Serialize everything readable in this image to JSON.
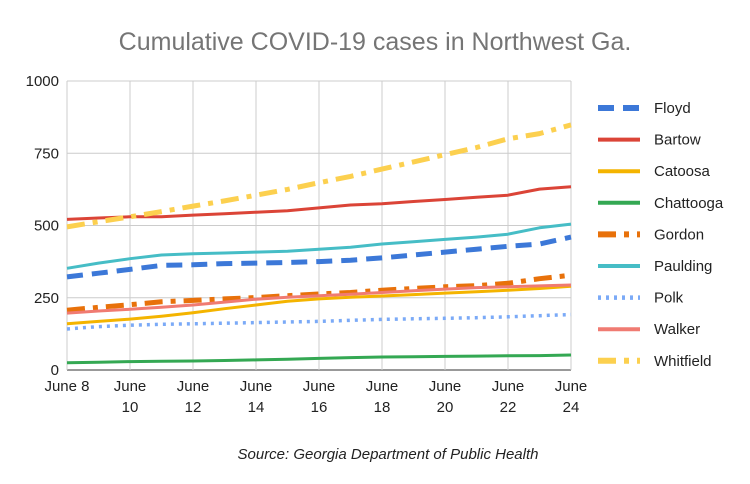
{
  "chart_data": {
    "type": "line",
    "title": "Cumulative COVID-19 cases in Northwest Ga.",
    "source": "Source: Georgia Department of Public Health",
    "xlabel": "",
    "ylabel": "",
    "ylim": [
      0,
      1000
    ],
    "yticks": [
      0,
      250,
      500,
      750,
      1000
    ],
    "x": [
      8,
      9,
      10,
      11,
      12,
      13,
      14,
      15,
      16,
      17,
      18,
      19,
      20,
      21,
      22,
      23,
      24
    ],
    "xticks": [
      {
        "x": 8,
        "line1": "June 8",
        "line2": ""
      },
      {
        "x": 10,
        "line1": "June",
        "line2": "10"
      },
      {
        "x": 12,
        "line1": "June",
        "line2": "12"
      },
      {
        "x": 14,
        "line1": "June",
        "line2": "14"
      },
      {
        "x": 16,
        "line1": "June",
        "line2": "16"
      },
      {
        "x": 18,
        "line1": "June",
        "line2": "18"
      },
      {
        "x": 20,
        "line1": "June",
        "line2": "20"
      },
      {
        "x": 22,
        "line1": "June",
        "line2": "22"
      },
      {
        "x": 24,
        "line1": "June",
        "line2": "24"
      }
    ],
    "grid": true,
    "legend_position": "right",
    "series": [
      {
        "name": "Floyd",
        "color": "#3c78d8",
        "dash": "long-dash",
        "values": [
          322,
          335,
          348,
          362,
          364,
          368,
          370,
          372,
          375,
          380,
          388,
          398,
          408,
          418,
          428,
          436,
          460
        ]
      },
      {
        "name": "Bartow",
        "color": "#db4437",
        "dash": "solid",
        "values": [
          521,
          526,
          530,
          530,
          536,
          541,
          546,
          551,
          561,
          571,
          575,
          583,
          590,
          598,
          605,
          626,
          634
        ]
      },
      {
        "name": "Catoosa",
        "color": "#f4b400",
        "dash": "solid",
        "values": [
          160,
          168,
          176,
          186,
          198,
          212,
          225,
          238,
          246,
          252,
          256,
          261,
          266,
          271,
          276,
          282,
          290
        ]
      },
      {
        "name": "Chattooga",
        "color": "#34a853",
        "dash": "solid",
        "values": [
          25,
          27,
          29,
          30,
          31,
          33,
          35,
          37,
          40,
          43,
          45,
          46,
          47,
          48,
          49,
          50,
          52
        ]
      },
      {
        "name": "Gordon",
        "color": "#e8710a",
        "dash": "dash-dot",
        "values": [
          207,
          217,
          226,
          236,
          241,
          246,
          251,
          257,
          263,
          268,
          276,
          282,
          288,
          292,
          300,
          316,
          328
        ]
      },
      {
        "name": "Paulding",
        "color": "#46bdc6",
        "dash": "solid",
        "values": [
          352,
          370,
          385,
          398,
          402,
          405,
          408,
          411,
          418,
          425,
          436,
          444,
          452,
          460,
          470,
          492,
          505
        ]
      },
      {
        "name": "Polk",
        "color": "#7baaf7",
        "dash": "dotted",
        "values": [
          142,
          150,
          155,
          158,
          160,
          162,
          164,
          166,
          168,
          172,
          175,
          177,
          179,
          181,
          184,
          188,
          192
        ]
      },
      {
        "name": "Walker",
        "color": "#f07b72",
        "dash": "solid",
        "values": [
          197,
          204,
          210,
          217,
          225,
          235,
          245,
          252,
          257,
          262,
          268,
          274,
          280,
          285,
          288,
          291,
          294
        ]
      },
      {
        "name": "Whitfield",
        "color": "#fcd04f",
        "dash": "dash-dot",
        "values": [
          495,
          513,
          530,
          548,
          567,
          585,
          605,
          625,
          648,
          670,
          695,
          720,
          745,
          770,
          800,
          818,
          848
        ]
      }
    ]
  }
}
